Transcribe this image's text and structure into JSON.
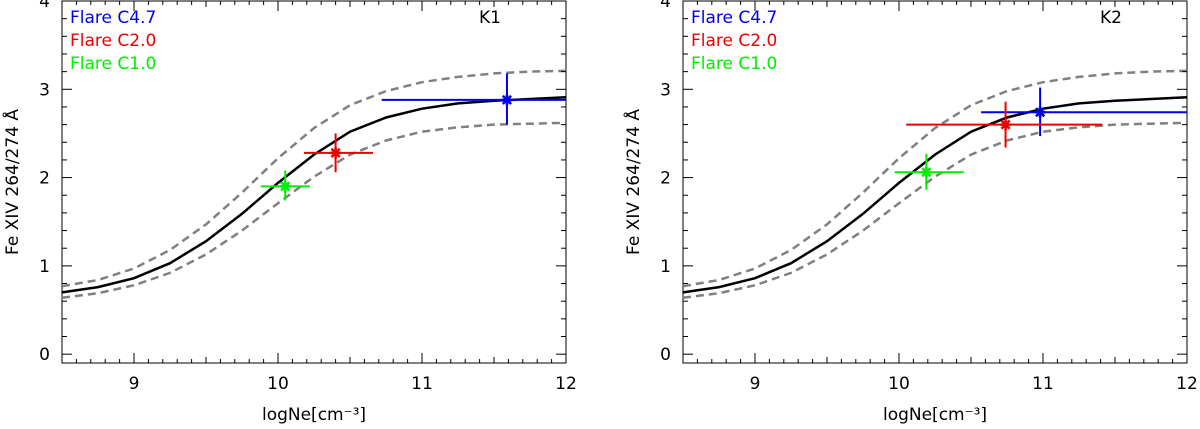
{
  "chart_data": [
    {
      "type": "line",
      "panel_label": "K1",
      "xlabel": "logNe[cm⁻³]",
      "ylabel": "Fe XIV 264/274 Å",
      "xlim": [
        8.5,
        12
      ],
      "ylim": [
        -0.1,
        4.0
      ],
      "xticks": [
        9,
        10,
        11,
        12
      ],
      "xtick_labels": [
        "9",
        "10",
        "11",
        "12"
      ],
      "yticks": [
        0,
        1,
        2,
        3,
        4
      ],
      "ytick_labels": [
        "0",
        "1",
        "2",
        "3",
        "4"
      ],
      "curve": {
        "x": [
          8.5,
          8.75,
          9.0,
          9.25,
          9.5,
          9.75,
          10.0,
          10.25,
          10.5,
          10.75,
          11.0,
          11.25,
          11.5,
          11.75,
          12.0
        ],
        "y": [
          0.7,
          0.76,
          0.86,
          1.03,
          1.28,
          1.59,
          1.94,
          2.26,
          2.52,
          2.68,
          2.78,
          2.84,
          2.87,
          2.89,
          2.91
        ]
      },
      "upper_curve": {
        "x": [
          8.5,
          8.75,
          9.0,
          9.25,
          9.5,
          9.75,
          10.0,
          10.25,
          10.5,
          10.75,
          11.0,
          11.25,
          11.5,
          11.75,
          12.0
        ],
        "y": [
          0.77,
          0.84,
          0.97,
          1.18,
          1.47,
          1.83,
          2.22,
          2.56,
          2.82,
          2.98,
          3.08,
          3.14,
          3.18,
          3.2,
          3.21
        ]
      },
      "lower_curve": {
        "x": [
          8.5,
          8.75,
          9.0,
          9.25,
          9.5,
          9.75,
          10.0,
          10.25,
          10.5,
          10.75,
          11.0,
          11.25,
          11.5,
          11.75,
          12.0
        ],
        "y": [
          0.64,
          0.69,
          0.78,
          0.92,
          1.13,
          1.4,
          1.71,
          2.01,
          2.26,
          2.42,
          2.52,
          2.57,
          2.6,
          2.61,
          2.62
        ]
      },
      "series": [
        {
          "name": "Flare C4.7",
          "color": "#0000ee",
          "x": 11.59,
          "y": 2.88,
          "x_low": 10.72,
          "x_high": 12.0,
          "y_low": 2.6,
          "y_high": 3.18
        },
        {
          "name": "Flare C2.0",
          "color": "#ee0000",
          "x": 10.4,
          "y": 2.28,
          "x_low": 10.18,
          "x_high": 10.66,
          "y_low": 2.06,
          "y_high": 2.5
        },
        {
          "name": "Flare C1.0",
          "color": "#00ee00",
          "x": 10.05,
          "y": 1.9,
          "x_low": 9.88,
          "x_high": 10.22,
          "y_low": 1.74,
          "y_high": 2.08
        }
      ],
      "legend": [
        "Flare C4.7",
        "Flare C2.0",
        "Flare C1.0"
      ]
    },
    {
      "type": "line",
      "panel_label": "K2",
      "xlabel": "logNe[cm⁻³]",
      "ylabel": "Fe XIV 264/274 Å",
      "xlim": [
        8.5,
        12
      ],
      "ylim": [
        -0.1,
        4.0
      ],
      "xticks": [
        9,
        10,
        11,
        12
      ],
      "xtick_labels": [
        "9",
        "10",
        "11",
        "12"
      ],
      "yticks": [
        0,
        1,
        2,
        3,
        4
      ],
      "ytick_labels": [
        "0",
        "1",
        "2",
        "3",
        "4"
      ],
      "curve": {
        "x": [
          8.5,
          8.75,
          9.0,
          9.25,
          9.5,
          9.75,
          10.0,
          10.25,
          10.5,
          10.75,
          11.0,
          11.25,
          11.5,
          11.75,
          12.0
        ],
        "y": [
          0.7,
          0.76,
          0.86,
          1.03,
          1.28,
          1.59,
          1.94,
          2.26,
          2.52,
          2.68,
          2.78,
          2.84,
          2.87,
          2.89,
          2.91
        ]
      },
      "upper_curve": {
        "x": [
          8.5,
          8.75,
          9.0,
          9.25,
          9.5,
          9.75,
          10.0,
          10.25,
          10.5,
          10.75,
          11.0,
          11.25,
          11.5,
          11.75,
          12.0
        ],
        "y": [
          0.77,
          0.84,
          0.97,
          1.18,
          1.47,
          1.83,
          2.22,
          2.56,
          2.82,
          2.98,
          3.08,
          3.14,
          3.18,
          3.2,
          3.21
        ]
      },
      "lower_curve": {
        "x": [
          8.5,
          8.75,
          9.0,
          9.25,
          9.5,
          9.75,
          10.0,
          10.25,
          10.5,
          10.75,
          11.0,
          11.25,
          11.5,
          11.75,
          12.0
        ],
        "y": [
          0.64,
          0.69,
          0.78,
          0.92,
          1.13,
          1.4,
          1.71,
          2.01,
          2.26,
          2.42,
          2.52,
          2.57,
          2.6,
          2.61,
          2.62
        ]
      },
      "series": [
        {
          "name": "Flare C4.7",
          "color": "#0000ee",
          "x": 10.98,
          "y": 2.74,
          "x_low": 10.57,
          "x_high": 12.0,
          "y_low": 2.47,
          "y_high": 3.02
        },
        {
          "name": "Flare C2.0",
          "color": "#ee0000",
          "x": 10.74,
          "y": 2.6,
          "x_low": 10.05,
          "x_high": 11.41,
          "y_low": 2.34,
          "y_high": 2.86
        },
        {
          "name": "Flare C1.0",
          "color": "#00ee00",
          "x": 10.19,
          "y": 2.06,
          "x_low": 9.97,
          "x_high": 10.45,
          "y_low": 1.86,
          "y_high": 2.27
        }
      ],
      "legend": [
        "Flare C4.7",
        "Flare C2.0",
        "Flare C1.0"
      ]
    }
  ]
}
